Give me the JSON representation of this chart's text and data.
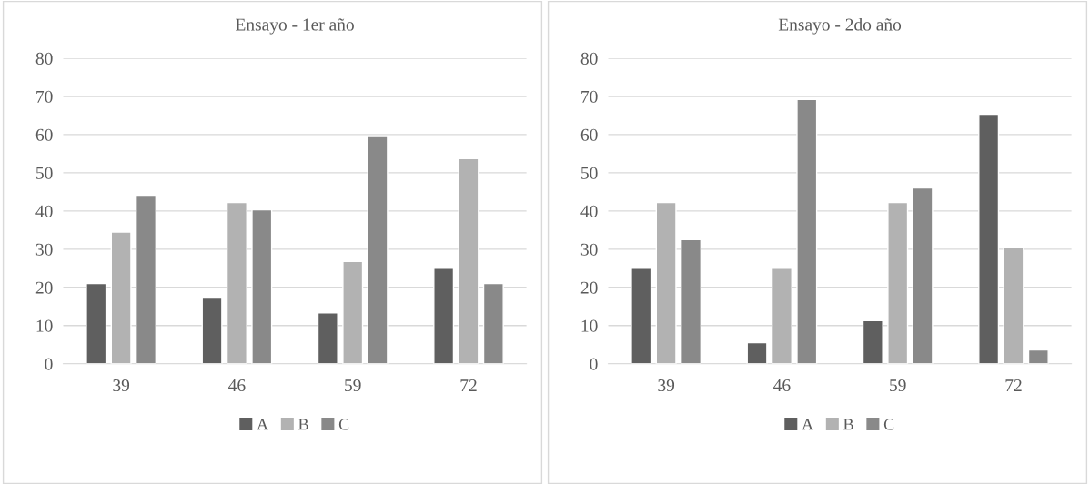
{
  "chart_data": [
    {
      "type": "bar",
      "title": "Ensayo - 1er año",
      "categories": [
        "39",
        "46",
        "59",
        "72"
      ],
      "series": [
        {
          "name": "A",
          "color": "#5f5f5f",
          "values": [
            21,
            17.2,
            13.3,
            25
          ]
        },
        {
          "name": "B",
          "color": "#b2b2b2",
          "values": [
            34.5,
            42.2,
            26.8,
            53.7
          ]
        },
        {
          "name": "C",
          "color": "#898989",
          "values": [
            44.1,
            40.3,
            59.5,
            21
          ]
        }
      ],
      "ylim": [
        0,
        80
      ],
      "yticks": [
        0,
        10,
        20,
        30,
        40,
        50,
        60,
        70,
        80
      ],
      "grid": "y",
      "legend": "bottom"
    },
    {
      "type": "bar",
      "title": "Ensayo - 2do año",
      "categories": [
        "39",
        "46",
        "59",
        "72"
      ],
      "series": [
        {
          "name": "A",
          "color": "#5f5f5f",
          "values": [
            25,
            5.5,
            11.3,
            65.3
          ]
        },
        {
          "name": "B",
          "color": "#b2b2b2",
          "values": [
            42.2,
            25,
            42.2,
            30.6
          ]
        },
        {
          "name": "C",
          "color": "#898989",
          "values": [
            32.5,
            69.2,
            46,
            3.6
          ]
        }
      ],
      "ylim": [
        0,
        80
      ],
      "yticks": [
        0,
        10,
        20,
        30,
        40,
        50,
        60,
        70,
        80
      ],
      "grid": "y",
      "legend": "bottom"
    }
  ]
}
